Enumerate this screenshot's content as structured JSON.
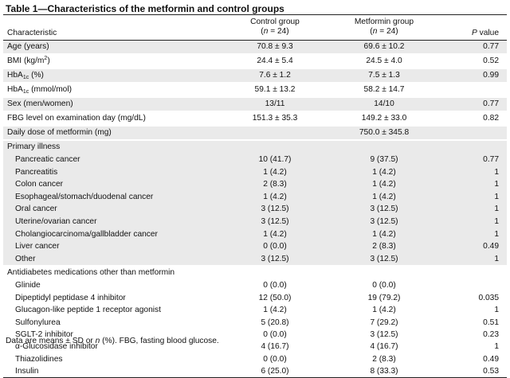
{
  "title": "Table 1—Characteristics of the metformin and control groups",
  "columns": {
    "characteristic": "Characteristic",
    "control_line1": "Control group",
    "control_line2_pre": "(",
    "control_line2_n": "n",
    "control_line2_post": " = 24)",
    "metformin_line1": "Metformin group",
    "metformin_line2_pre": "(",
    "metformin_line2_n": "n",
    "metformin_line2_post": " = 24)",
    "p_prefix": "P",
    "p_suffix": " value"
  },
  "block1": [
    {
      "label": "Age (years)",
      "control": "70.8 ± 9.3",
      "metformin": "69.6 ± 10.2",
      "p": "0.77"
    },
    {
      "label": "BMI (kg/m",
      "label_sup": "2",
      "label_post": ")",
      "control": "24.4 ± 5.4",
      "metformin": "24.5 ± 4.0",
      "p": "0.52"
    },
    {
      "label": "HbA",
      "label_sub": "1c",
      "label_post": " (%)",
      "control": "7.6 ± 1.2",
      "metformin": "7.5 ± 1.3",
      "p": "0.99"
    },
    {
      "label": "HbA",
      "label_sub": "1c",
      "label_post": " (mmol/mol)",
      "control": "59.1 ± 13.2",
      "metformin": "58.2 ± 14.7",
      "p": ""
    },
    {
      "label": "Sex (men/women)",
      "control": "13/11",
      "metformin": "14/10",
      "p": "0.77"
    },
    {
      "label": "FBG level on examination day (mg/dL)",
      "control": "151.3 ± 35.3",
      "metformin": "149.2 ± 33.0",
      "p": "0.82"
    },
    {
      "label": "Daily dose of metformin (mg)",
      "control": "",
      "metformin": "750.0 ± 345.8",
      "p": ""
    }
  ],
  "primary_illness": {
    "header": "Primary illness",
    "rows": [
      {
        "label": "Pancreatic cancer",
        "control": "10 (41.7)",
        "metformin": "9 (37.5)",
        "p": "0.77"
      },
      {
        "label": "Pancreatitis",
        "control": "1 (4.2)",
        "metformin": "1 (4.2)",
        "p": "1"
      },
      {
        "label": "Colon cancer",
        "control": "2 (8.3)",
        "metformin": "1 (4.2)",
        "p": "1"
      },
      {
        "label": "Esophageal/stomach/duodenal cancer",
        "control": "1 (4.2)",
        "metformin": "1 (4.2)",
        "p": "1"
      },
      {
        "label": "Oral cancer",
        "control": "3 (12.5)",
        "metformin": "3 (12.5)",
        "p": "1"
      },
      {
        "label": "Uterine/ovarian cancer",
        "control": "3 (12.5)",
        "metformin": "3 (12.5)",
        "p": "1"
      },
      {
        "label": "Cholangiocarcinoma/gallbladder cancer",
        "control": "1 (4.2)",
        "metformin": "1 (4.2)",
        "p": "1"
      },
      {
        "label": "Liver cancer",
        "control": "0 (0.0)",
        "metformin": "2 (8.3)",
        "p": "0.49"
      },
      {
        "label": "Other",
        "control": "3 (12.5)",
        "metformin": "3 (12.5)",
        "p": "1"
      }
    ]
  },
  "antidiabetes": {
    "header": "Antidiabetes medications other than metformin",
    "rows": [
      {
        "label": "Glinide",
        "control": "0 (0.0)",
        "metformin": "0 (0.0)",
        "p": ""
      },
      {
        "label": "Dipeptidyl peptidase 4 inhibitor",
        "control": "12 (50.0)",
        "metformin": "19 (79.2)",
        "p": "0.035"
      },
      {
        "label": "Glucagon-like peptide 1 receptor agonist",
        "control": "1 (4.2)",
        "metformin": "1 (4.2)",
        "p": "1"
      },
      {
        "label": "Sulfonylurea",
        "control": "5 (20.8)",
        "metformin": "7 (29.2)",
        "p": "0.51"
      },
      {
        "label": "SGLT-2 inhibitor",
        "control": "0 (0.0)",
        "metformin": "3 (12.5)",
        "p": "0.23"
      },
      {
        "label": "α-Glucosidase inhibitor",
        "control": "4 (16.7)",
        "metformin": "4 (16.7)",
        "p": "1"
      },
      {
        "label": "Thiazolidines",
        "control": "0 (0.0)",
        "metformin": "2 (8.3)",
        "p": "0.49"
      },
      {
        "label": "Insulin",
        "control": "6 (25.0)",
        "metformin": "8 (33.3)",
        "p": "0.53"
      }
    ]
  },
  "footnote": {
    "pre": "Data are means ± SD or ",
    "n": "n",
    "post": " (%). FBG, fasting blood glucose."
  },
  "colors": {
    "shade": "#eaeaea",
    "rule": "#222222",
    "text": "#111111"
  }
}
